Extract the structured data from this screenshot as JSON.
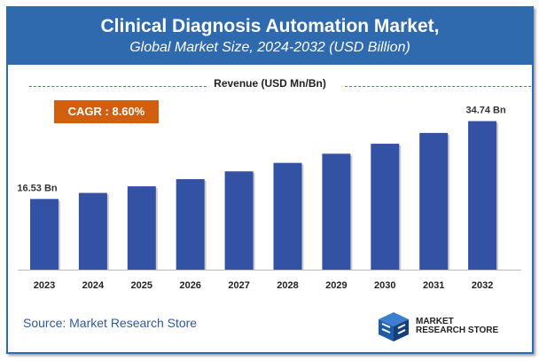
{
  "header": {
    "title": "Clinical Diagnosis Automation Market,",
    "subtitle": "Global Market Size, 2024-2032 (USD Billion)"
  },
  "revenue_label": "Revenue (USD Mn/Bn)",
  "cagr": "CAGR : 8.60%",
  "source": "Source: Market Research Store",
  "logo": {
    "line1": "MARKET",
    "line2": "RESEARCH STORE"
  },
  "colors": {
    "bar": "#3352a4",
    "header": "#2e6aad",
    "cagr": "#d0600f"
  },
  "chart_data": {
    "type": "bar",
    "categories": [
      "2023",
      "2024",
      "2025",
      "2026",
      "2027",
      "2028",
      "2029",
      "2030",
      "2031",
      "2032"
    ],
    "values": [
      16.53,
      17.95,
      19.49,
      21.17,
      22.99,
      24.97,
      27.11,
      29.45,
      31.98,
      34.74
    ],
    "data_labels": {
      "0": "16.53 Bn",
      "9": "34.74 Bn"
    },
    "ylabel": "Revenue (USD Mn/Bn)",
    "grid": false
  }
}
